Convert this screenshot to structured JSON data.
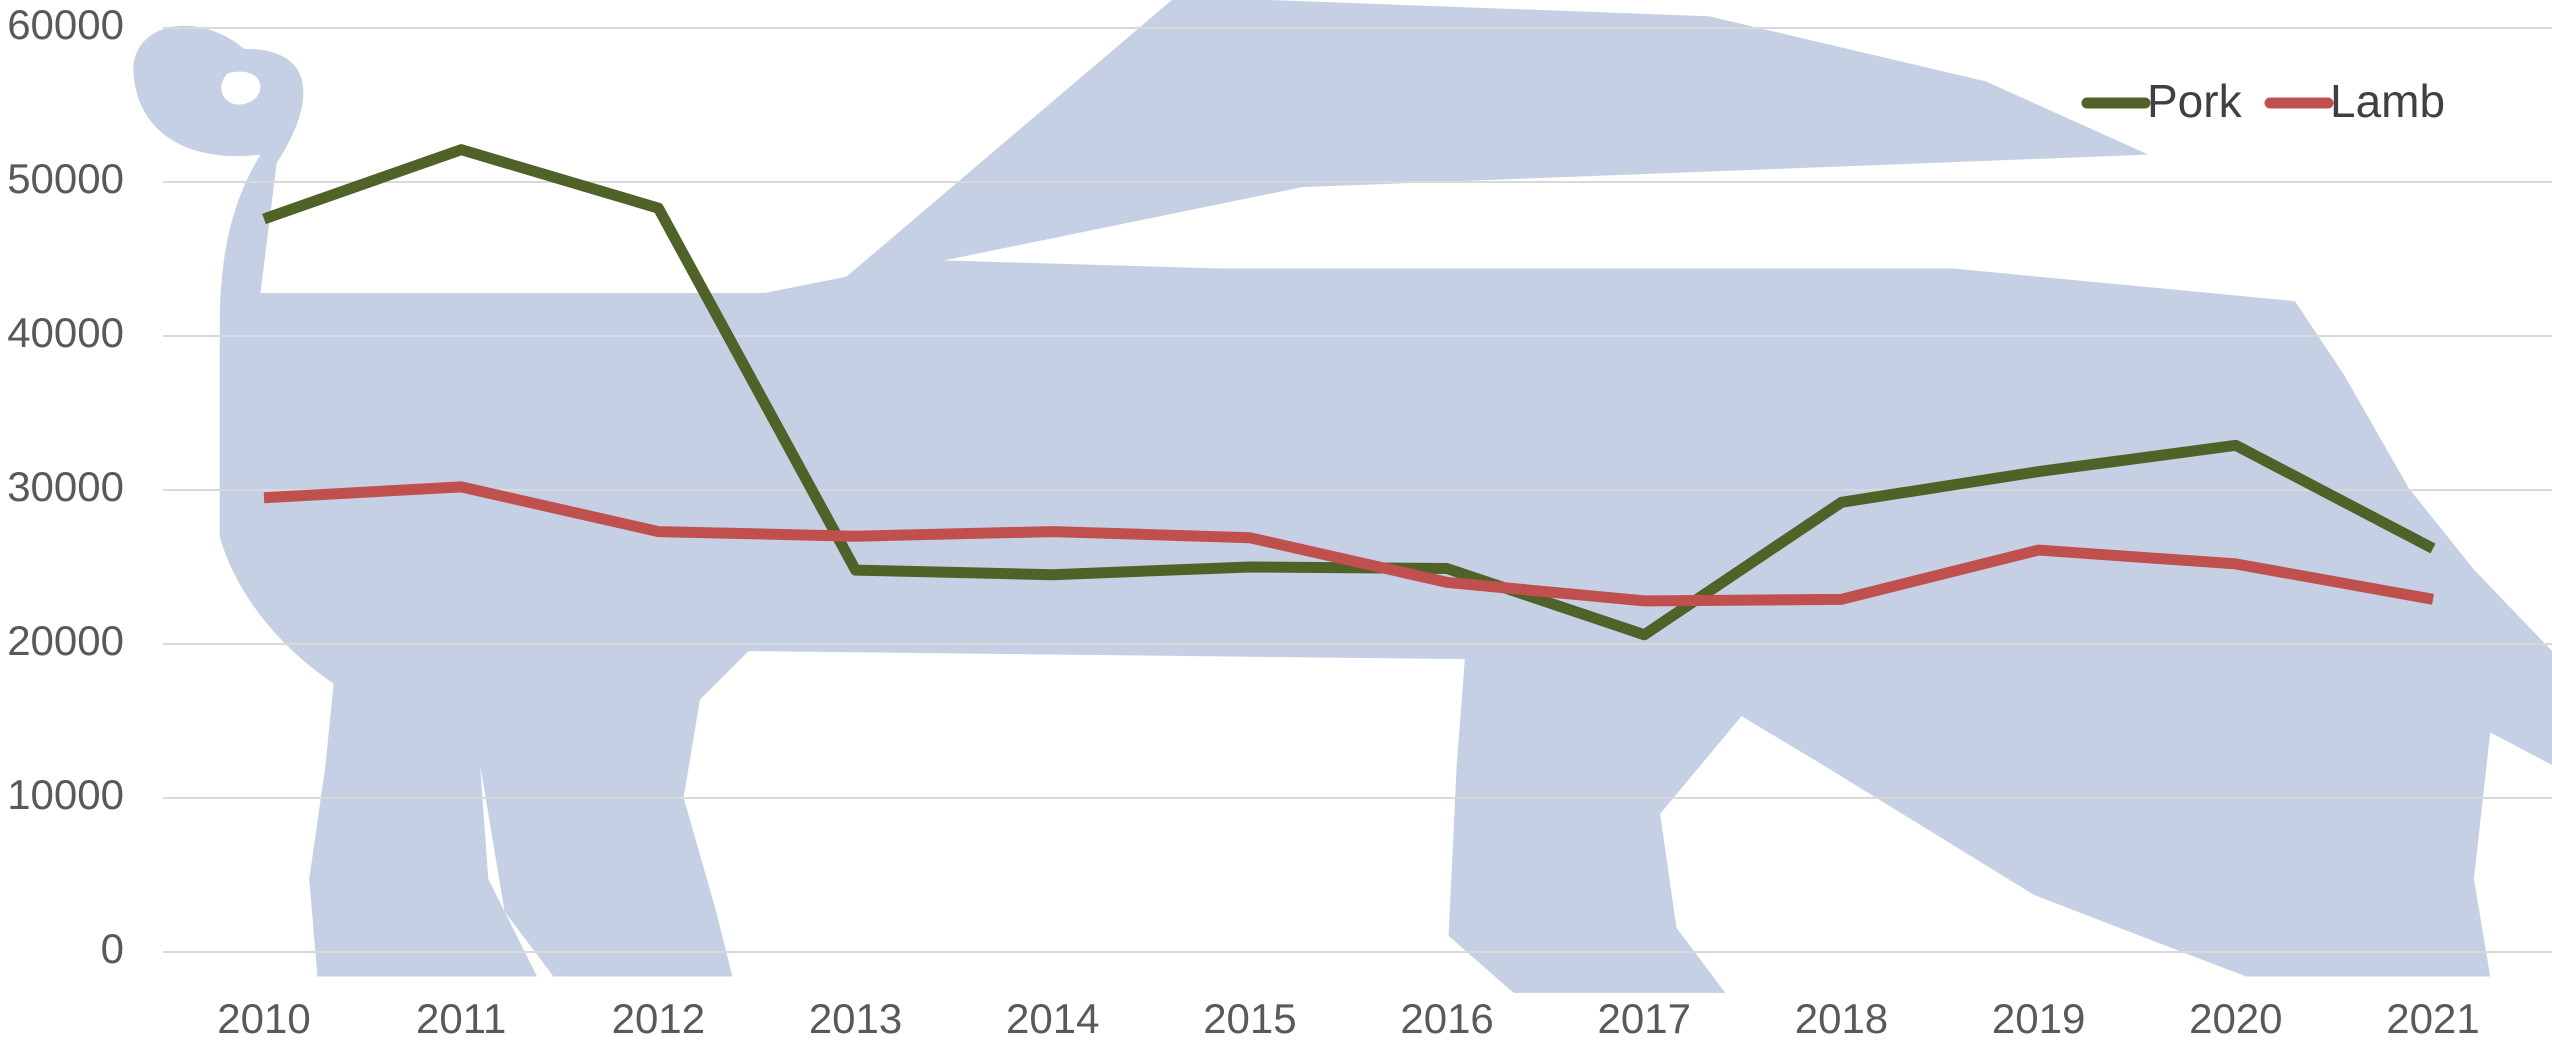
{
  "chart_data": {
    "type": "line",
    "categories": [
      "2010",
      "2011",
      "2012",
      "2013",
      "2014",
      "2015",
      "2016",
      "2017",
      "2018",
      "2019",
      "2020",
      "2021"
    ],
    "series": [
      {
        "name": "Pork",
        "color": "#4f6228",
        "values": [
          47600,
          52100,
          48300,
          24800,
          24500,
          25000,
          24900,
          20600,
          29200,
          31200,
          32900,
          26200
        ]
      },
      {
        "name": "Lamb",
        "color": "#c0504d",
        "values": [
          29500,
          30200,
          27300,
          27000,
          27300,
          26900,
          24000,
          22800,
          22900,
          26100,
          25200,
          22900
        ]
      }
    ],
    "ylim": [
      0,
      60000
    ],
    "yticks": [
      0,
      10000,
      20000,
      30000,
      40000,
      50000,
      60000
    ],
    "grid": true,
    "legend": "top-right"
  }
}
